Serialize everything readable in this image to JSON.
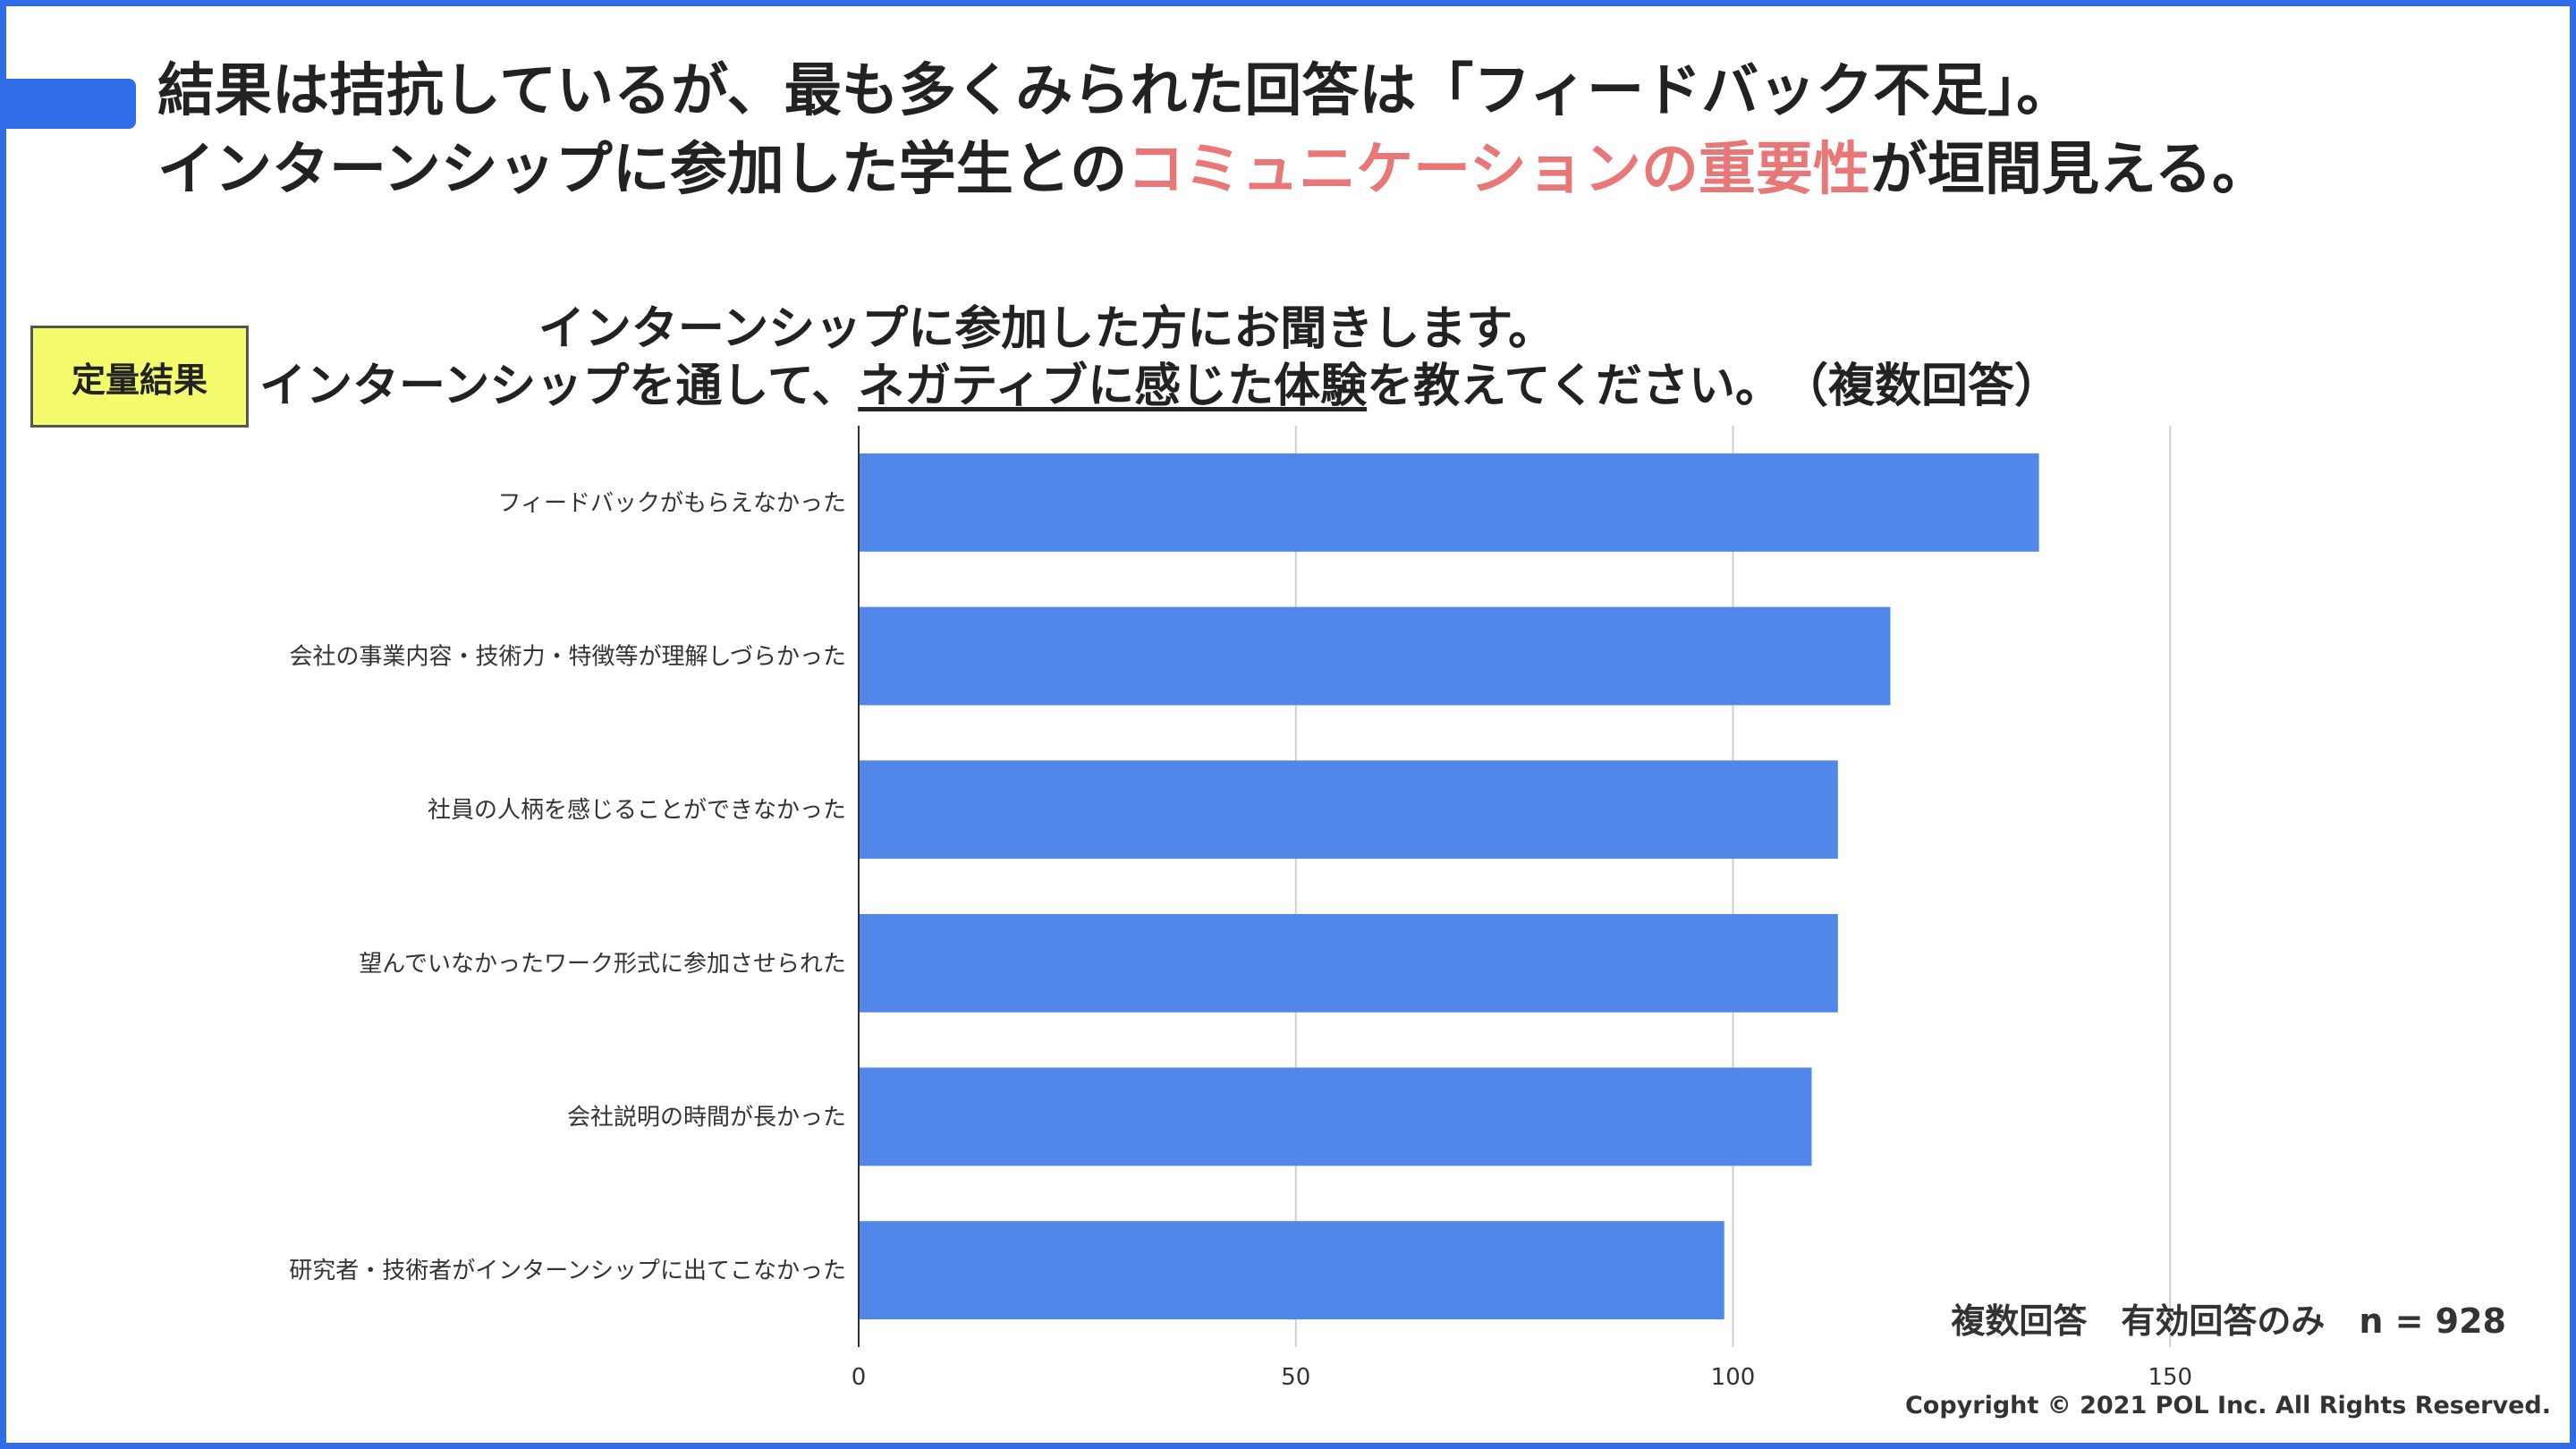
{
  "slide": {
    "headline_line1": "結果は拮抗しているが、最も多くみられた回答は「フィードバック不足」。",
    "headline_line2_pre": "インターンシップに参加した学生との",
    "headline_line2_highlight": "コミュニケーションの重要性",
    "headline_line2_post": "が垣間見える。",
    "highlight_color": "#ea7777",
    "accent_color": "#2e6ce8",
    "tag_label": "定量結果",
    "tag_color": "#f4fb6d"
  },
  "question": {
    "line1": "インターンシップに参加した方にお聞きします。",
    "line2_pre": "インターンシップを通して、",
    "line2_underlined": "ネガティブに感じた体験",
    "line2_post": "を教えてください。　（複数回答）"
  },
  "note": "複数回答　有効回答のみ　n = 928",
  "copyright": "Copyright © 2021 POL Inc. All Rights Reserved.",
  "chart_data": {
    "type": "bar",
    "orientation": "horizontal",
    "categories": [
      "フィードバックがもらえなかった",
      "会社の事業内容・技術力・特徴等が理解しづらかった",
      "社員の人柄を感じることができなかった",
      "望んでいなかったワーク形式に参加させられた",
      "会社説明の時間が長かった",
      "研究者・技術者がインターンシップに出てこなかった"
    ],
    "values": [
      135,
      118,
      112,
      112,
      109,
      99
    ],
    "x_ticks": [
      0,
      50,
      100,
      150
    ],
    "xlim": [
      0,
      160
    ],
    "grid": true,
    "bar_color": "#5087e8"
  }
}
